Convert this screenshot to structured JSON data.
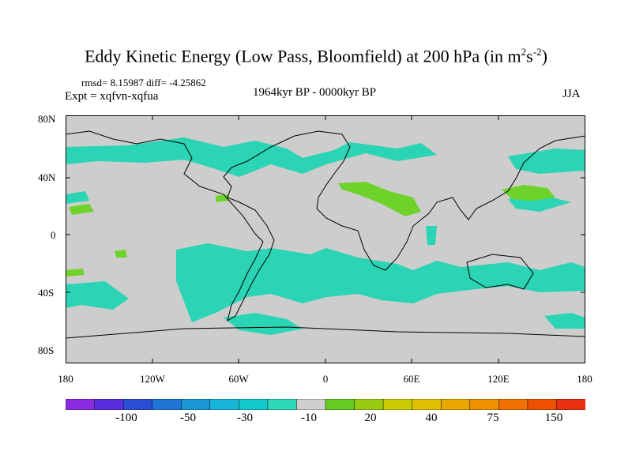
{
  "title": {
    "main": "Eddy Kinetic Energy (Low Pass, Bloomfield) at 200 hPa (in m",
    "sup1": "2",
    "mid": "s",
    "sup2": "-2",
    "close": ")"
  },
  "stats": "rmsd= 8.15987 diff= -4.25862",
  "expt": "Expt = xqfvn-xqfua",
  "period": "1964kyr BP - 0000kyr BP",
  "season": "JJA",
  "lat_labels": [
    "80N",
    "40N",
    "0",
    "40S",
    "80S"
  ],
  "lon_labels": [
    "180",
    "120W",
    "60W",
    "0",
    "60E",
    "120E",
    "180"
  ],
  "colorbar": {
    "colors": [
      "#8a2be2",
      "#5a2ee0",
      "#2a4fd6",
      "#1f74d8",
      "#1a96d4",
      "#16b4d6",
      "#12c8c8",
      "#2cd9b8",
      "#cfcfcf",
      "#66cc22",
      "#99cc11",
      "#c8cc00",
      "#e0c000",
      "#e8a800",
      "#f09000",
      "#f07000",
      "#ee5000",
      "#e83010"
    ],
    "labels": [
      "-100",
      "-50",
      "-30",
      "-10",
      "20",
      "40",
      "75",
      "150"
    ]
  },
  "fill_colors": {
    "ocean_land": "#cdcdcd",
    "cyan": "#2ad4b4",
    "green": "#6fd22a"
  }
}
